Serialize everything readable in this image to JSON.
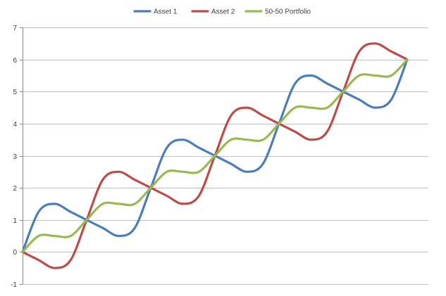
{
  "chart_data": {
    "type": "line",
    "title": "",
    "xlabel": "",
    "ylabel": "",
    "ylim": [
      -1,
      7
    ],
    "ytick_labels": [
      "-1",
      "0",
      "1",
      "2",
      "3",
      "4",
      "5",
      "6",
      "7"
    ],
    "grid": true,
    "legend": "top",
    "x": [
      0,
      0.25,
      0.5,
      0.75,
      1,
      1.25,
      1.5,
      1.75,
      2,
      2.25,
      2.5,
      2.75,
      3,
      3.25,
      3.5,
      3.75,
      4,
      4.25,
      4.5,
      4.75,
      5,
      5.25,
      5.5,
      5.75,
      6
    ],
    "series": [
      {
        "name": "Asset 1",
        "color": "#4a7ebb",
        "values": [
          0,
          1.25,
          1.5,
          1.25,
          1,
          0.75,
          0.5,
          0.75,
          2,
          3.25,
          3.5,
          3.25,
          3,
          2.75,
          2.5,
          2.75,
          4,
          5.25,
          5.5,
          5.25,
          5,
          4.75,
          4.5,
          4.75,
          6
        ]
      },
      {
        "name": "Asset 2",
        "color": "#be4b48",
        "values": [
          0,
          -0.25,
          -0.5,
          -0.25,
          1,
          2.25,
          2.5,
          2.25,
          2,
          1.75,
          1.5,
          1.75,
          3,
          4.25,
          4.5,
          4.25,
          4,
          3.75,
          3.5,
          3.75,
          5,
          6.25,
          6.5,
          6.25,
          6
        ]
      },
      {
        "name": "50-50 Portfolio",
        "color": "#98b954",
        "values": [
          0,
          0.5,
          0.5,
          0.5,
          1,
          1.5,
          1.5,
          1.5,
          2,
          2.5,
          2.5,
          2.5,
          3,
          3.5,
          3.5,
          3.5,
          4,
          4.5,
          4.5,
          4.5,
          5,
          5.5,
          5.5,
          5.5,
          6
        ]
      }
    ]
  }
}
